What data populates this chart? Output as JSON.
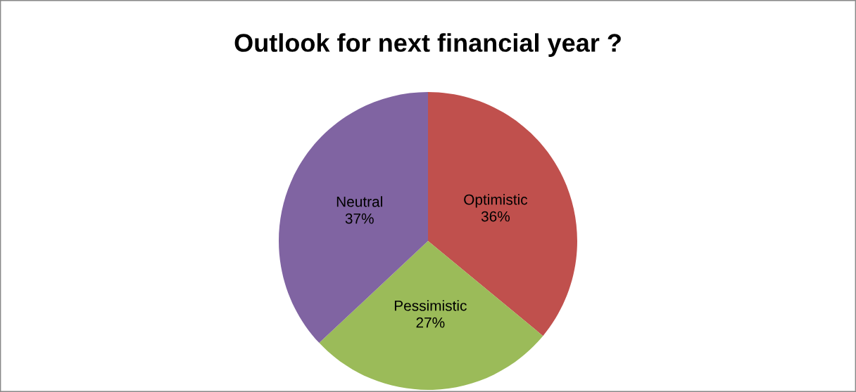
{
  "chart_data": {
    "type": "pie",
    "title": "Outlook for next financial year ?",
    "categories": [
      "Optimistic",
      "Pessimistic",
      "Neutral"
    ],
    "values": [
      36,
      27,
      37
    ],
    "value_labels": [
      "36%",
      "27%",
      "37%"
    ],
    "colors": [
      "#c0504d",
      "#9bbb59",
      "#8064a2"
    ],
    "legend": false
  }
}
